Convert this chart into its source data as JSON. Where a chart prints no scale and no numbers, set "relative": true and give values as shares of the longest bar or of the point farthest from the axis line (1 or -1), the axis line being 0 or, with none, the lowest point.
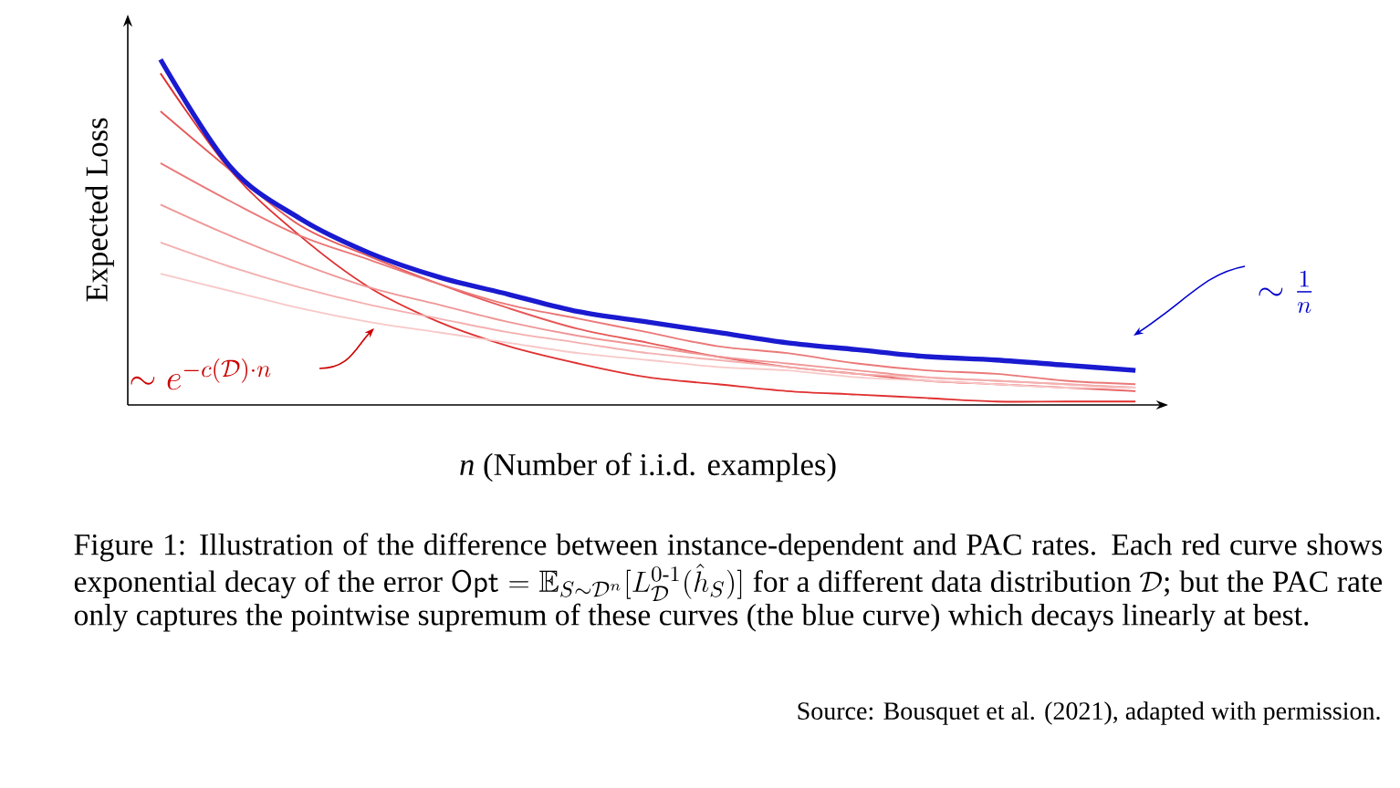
{
  "chart_data": {
    "type": "line",
    "relative": true,
    "xlabel": "*n* (Number of i.i.d. examples)",
    "ylabel": "Expected Loss",
    "categories": [
      null,
      null,
      null,
      null,
      null,
      null,
      null,
      null,
      null,
      null,
      null,
      null,
      null,
      null,
      null
    ],
    "series": [
      {
        "color": "#e03030",
        "values": [
          0.96,
          0.68,
          0.49,
          0.34,
          0.24,
          0.17,
          0.12,
          0.08,
          0.06,
          0.04,
          0.03,
          0.02,
          0.01,
          0.01,
          0.01
        ]
      },
      {
        "color": "#e65a5a",
        "values": [
          0.85,
          0.68,
          0.52,
          0.43,
          0.35,
          0.28,
          0.22,
          0.18,
          0.14,
          0.11,
          0.09,
          0.07,
          0.06,
          0.05,
          0.04
        ]
      },
      {
        "color": "#eb7878",
        "values": [
          0.7,
          0.59,
          0.49,
          0.42,
          0.35,
          0.29,
          0.25,
          0.21,
          0.17,
          0.15,
          0.12,
          0.1,
          0.09,
          0.07,
          0.06
        ]
      },
      {
        "color": "#f09696",
        "values": [
          0.58,
          0.49,
          0.41,
          0.34,
          0.29,
          0.24,
          0.2,
          0.17,
          0.14,
          0.12,
          0.1,
          0.08,
          0.07,
          0.06,
          0.05
        ]
      },
      {
        "color": "#f4b0b0",
        "values": [
          0.47,
          0.4,
          0.34,
          0.29,
          0.25,
          0.21,
          0.18,
          0.15,
          0.13,
          0.11,
          0.09,
          0.08,
          0.07,
          0.06,
          0.05
        ]
      },
      {
        "color": "#f8c8c8",
        "values": [
          0.38,
          0.33,
          0.28,
          0.24,
          0.21,
          0.18,
          0.15,
          0.13,
          0.11,
          0.1,
          0.08,
          0.07,
          0.06,
          0.05,
          0.05
        ]
      },
      {
        "color": "#1a1ad0",
        "values": [
          1.0,
          0.69,
          0.54,
          0.44,
          0.37,
          0.32,
          0.27,
          0.24,
          0.21,
          0.18,
          0.16,
          0.14,
          0.13,
          0.115,
          0.1
        ]
      }
    ],
    "annotations": [
      "\\sim e^{-c(\\mathcal{D})\\cdot n}",
      "\\sim \\frac{1}{n}",
      "Figure 1: Illustration of the difference between instance-dependent and PAC rates. Each red curve shows exponential decay of the error",
      "\\mathsf{Opt} = \\mathbb{E}_{S\\sim\\mathcal{D}^n}[L_{\\mathcal{D}}^{0\\text{-}1}(\\hat{h}_S)]",
      "for a different data distribution",
      "\\mathcal{D}",
      "; but the PAC rate only captures the pointwise supremum of these curves (the blue curve) which decays linearly at best.",
      "Source: Bousquet et al. (2021), adapted with permission."
    ]
  }
}
